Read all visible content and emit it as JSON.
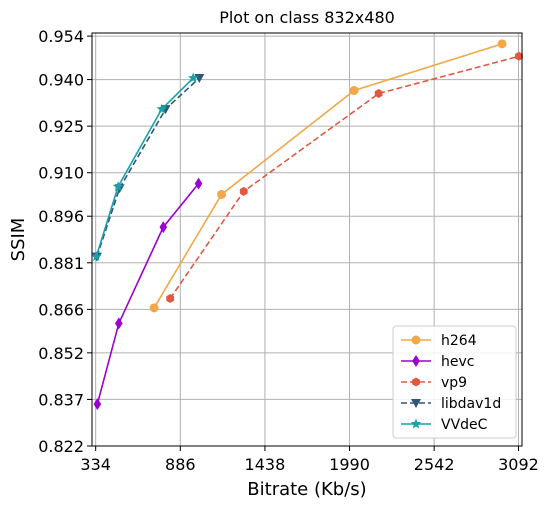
{
  "chart_data": {
    "type": "line",
    "title": "Plot on class 832x480",
    "xlabel": "Bitrate (Kb/s)",
    "ylabel": "SSIM",
    "xlim": [
      310,
      3115
    ],
    "ylim": [
      0.822,
      0.955
    ],
    "x_ticks": [
      334,
      886,
      1438,
      1990,
      2542,
      3092
    ],
    "y_ticks": [
      0.822,
      0.837,
      0.852,
      0.866,
      0.881,
      0.896,
      0.91,
      0.925,
      0.94,
      0.954
    ],
    "x_tick_labels": [
      "334",
      "886",
      "1438",
      "1990",
      "2542",
      "3092"
    ],
    "y_tick_labels": [
      "0.822",
      "0.837",
      "0.852",
      "0.866",
      "0.881",
      "0.896",
      "0.910",
      "0.925",
      "0.940",
      "0.954"
    ],
    "grid": true,
    "legend_position": "bottom-right",
    "series": [
      {
        "name": "h264",
        "color": "#f0a848",
        "marker": "circle",
        "dash": "solid",
        "x": [
          715,
          1155,
          2020,
          2985
        ],
        "y": [
          0.8665,
          0.903,
          0.9365,
          0.9515
        ]
      },
      {
        "name": "hevc",
        "color": "#9b00d3",
        "marker": "diamond",
        "dash": "solid",
        "x": [
          345,
          485,
          775,
          1005
        ],
        "y": [
          0.8355,
          0.8615,
          0.8925,
          0.9065
        ]
      },
      {
        "name": "vp9",
        "color": "#e05a43",
        "marker": "hexagon",
        "dash": "dashed",
        "x": [
          820,
          1300,
          2180,
          3095
        ],
        "y": [
          0.8695,
          0.904,
          0.9355,
          0.9475
        ]
      },
      {
        "name": "libdav1d",
        "color": "#2d5878",
        "marker": "triangle-down",
        "dash": "dashed",
        "x": [
          342,
          490,
          790,
          1010
        ],
        "y": [
          0.883,
          0.905,
          0.9305,
          0.9405
        ]
      },
      {
        "name": "VVdeC",
        "color": "#1aa0a8",
        "marker": "star",
        "dash": "solid",
        "x": [
          338,
          480,
          765,
          970
        ],
        "y": [
          0.883,
          0.9055,
          0.9305,
          0.9405
        ]
      }
    ]
  }
}
